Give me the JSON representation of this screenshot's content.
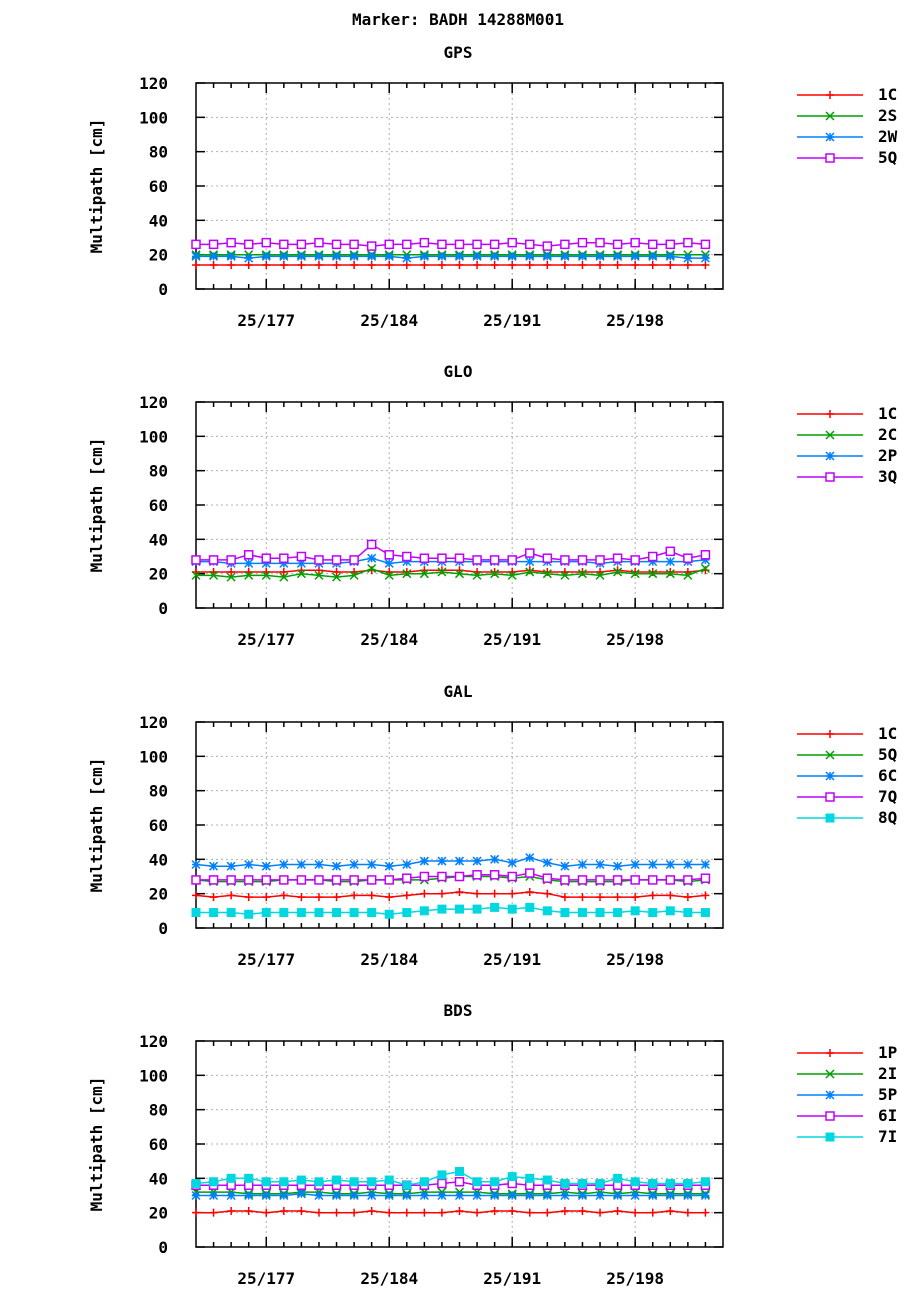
{
  "page": {
    "title": "Marker: BADH 14288M001"
  },
  "chart_data": [
    {
      "type": "line",
      "title": "GPS",
      "ylabel": "Multipath [cm]",
      "xlabel": "",
      "ylim": [
        0,
        120
      ],
      "yticks": [
        0,
        20,
        40,
        60,
        80,
        100,
        120
      ],
      "xlim": [
        173,
        203
      ],
      "xticks": [
        177,
        184,
        191,
        198
      ],
      "xtick_labels": [
        "25/177",
        "25/184",
        "25/191",
        "25/198"
      ],
      "grid": true,
      "legend": "right",
      "x": [
        173,
        174,
        175,
        176,
        177,
        178,
        179,
        180,
        181,
        182,
        183,
        184,
        185,
        186,
        187,
        188,
        189,
        190,
        191,
        192,
        193,
        194,
        195,
        196,
        197,
        198,
        199,
        200,
        201,
        202
      ],
      "series": [
        {
          "name": "1C",
          "color": "#ff0000",
          "marker": "plus",
          "values": [
            14,
            14,
            14,
            14,
            14,
            14,
            14,
            14,
            14,
            14,
            14,
            14,
            14,
            14,
            14,
            14,
            14,
            14,
            14,
            14,
            14,
            14,
            14,
            14,
            14,
            14,
            14,
            14,
            14,
            14
          ]
        },
        {
          "name": "2S",
          "color": "#00a000",
          "marker": "x",
          "values": [
            20,
            20,
            20,
            20,
            20,
            20,
            20,
            20,
            20,
            20,
            20,
            20,
            20,
            20,
            20,
            20,
            20,
            20,
            20,
            20,
            20,
            20,
            20,
            20,
            20,
            20,
            20,
            20,
            20,
            20
          ]
        },
        {
          "name": "2W",
          "color": "#0080ff",
          "marker": "star",
          "values": [
            19,
            19,
            19,
            18,
            19,
            19,
            19,
            19,
            19,
            19,
            19,
            19,
            18,
            19,
            19,
            19,
            19,
            19,
            19,
            19,
            19,
            19,
            19,
            19,
            19,
            19,
            19,
            19,
            18,
            18
          ]
        },
        {
          "name": "5Q",
          "color": "#c000ff",
          "marker": "square",
          "values": [
            26,
            26,
            27,
            26,
            27,
            26,
            26,
            27,
            26,
            26,
            25,
            26,
            26,
            27,
            26,
            26,
            26,
            26,
            27,
            26,
            25,
            26,
            27,
            27,
            26,
            27,
            26,
            26,
            27,
            26
          ]
        }
      ]
    },
    {
      "type": "line",
      "title": "GLO",
      "ylabel": "Multipath [cm]",
      "xlabel": "",
      "ylim": [
        0,
        120
      ],
      "yticks": [
        0,
        20,
        40,
        60,
        80,
        100,
        120
      ],
      "xlim": [
        173,
        203
      ],
      "xticks": [
        177,
        184,
        191,
        198
      ],
      "xtick_labels": [
        "25/177",
        "25/184",
        "25/191",
        "25/198"
      ],
      "grid": true,
      "legend": "right",
      "x": [
        173,
        174,
        175,
        176,
        177,
        178,
        179,
        180,
        181,
        182,
        183,
        184,
        185,
        186,
        187,
        188,
        189,
        190,
        191,
        192,
        193,
        194,
        195,
        196,
        197,
        198,
        199,
        200,
        201,
        202
      ],
      "series": [
        {
          "name": "1C",
          "color": "#ff0000",
          "marker": "plus",
          "values": [
            21,
            21,
            21,
            21,
            21,
            21,
            22,
            22,
            21,
            21,
            22,
            21,
            21,
            22,
            22,
            22,
            21,
            21,
            21,
            22,
            21,
            21,
            21,
            21,
            22,
            21,
            21,
            21,
            21,
            22
          ]
        },
        {
          "name": "2C",
          "color": "#00a000",
          "marker": "x",
          "values": [
            19,
            19,
            18,
            19,
            19,
            18,
            20,
            19,
            18,
            19,
            23,
            19,
            20,
            20,
            21,
            20,
            19,
            20,
            19,
            21,
            20,
            19,
            20,
            19,
            21,
            20,
            20,
            20,
            19,
            23
          ]
        },
        {
          "name": "2P",
          "color": "#0080ff",
          "marker": "star",
          "values": [
            27,
            27,
            26,
            26,
            26,
            26,
            26,
            26,
            26,
            27,
            29,
            26,
            27,
            27,
            27,
            27,
            27,
            27,
            27,
            27,
            27,
            27,
            27,
            26,
            27,
            27,
            27,
            27,
            27,
            28
          ]
        },
        {
          "name": "3Q",
          "color": "#c000ff",
          "marker": "square",
          "values": [
            28,
            28,
            28,
            31,
            29,
            29,
            30,
            28,
            28,
            28,
            37,
            31,
            30,
            29,
            29,
            29,
            28,
            28,
            28,
            32,
            29,
            28,
            28,
            28,
            29,
            28,
            30,
            33,
            29,
            31
          ]
        }
      ]
    },
    {
      "type": "line",
      "title": "GAL",
      "ylabel": "Multipath [cm]",
      "xlabel": "",
      "ylim": [
        0,
        120
      ],
      "yticks": [
        0,
        20,
        40,
        60,
        80,
        100,
        120
      ],
      "xlim": [
        173,
        203
      ],
      "xticks": [
        177,
        184,
        191,
        198
      ],
      "xtick_labels": [
        "25/177",
        "25/184",
        "25/191",
        "25/198"
      ],
      "grid": true,
      "legend": "right",
      "x": [
        173,
        174,
        175,
        176,
        177,
        178,
        179,
        180,
        181,
        182,
        183,
        184,
        185,
        186,
        187,
        188,
        189,
        190,
        191,
        192,
        193,
        194,
        195,
        196,
        197,
        198,
        199,
        200,
        201,
        202
      ],
      "series": [
        {
          "name": "1C",
          "color": "#ff0000",
          "marker": "plus",
          "values": [
            19,
            18,
            19,
            18,
            18,
            19,
            18,
            18,
            18,
            19,
            19,
            18,
            19,
            20,
            20,
            21,
            20,
            20,
            20,
            21,
            20,
            18,
            18,
            18,
            18,
            18,
            19,
            19,
            18,
            19
          ]
        },
        {
          "name": "5Q",
          "color": "#00a000",
          "marker": "x",
          "values": [
            28,
            27,
            27,
            27,
            27,
            28,
            28,
            28,
            27,
            27,
            28,
            28,
            28,
            28,
            29,
            30,
            30,
            30,
            29,
            30,
            28,
            27,
            27,
            27,
            27,
            28,
            28,
            28,
            27,
            28
          ]
        },
        {
          "name": "6C",
          "color": "#0080ff",
          "marker": "star",
          "values": [
            37,
            36,
            36,
            37,
            36,
            37,
            37,
            37,
            36,
            37,
            37,
            36,
            37,
            39,
            39,
            39,
            39,
            40,
            38,
            41,
            38,
            36,
            37,
            37,
            36,
            37,
            37,
            37,
            37,
            37
          ]
        },
        {
          "name": "7Q",
          "color": "#c000ff",
          "marker": "square",
          "values": [
            28,
            28,
            28,
            28,
            28,
            28,
            28,
            28,
            28,
            28,
            28,
            28,
            29,
            30,
            30,
            30,
            31,
            31,
            30,
            32,
            29,
            28,
            28,
            28,
            28,
            28,
            28,
            28,
            28,
            29
          ]
        },
        {
          "name": "8Q",
          "color": "#00d8e0",
          "marker": "filled-square",
          "values": [
            9,
            9,
            9,
            8,
            9,
            9,
            9,
            9,
            9,
            9,
            9,
            8,
            9,
            10,
            11,
            11,
            11,
            12,
            11,
            12,
            10,
            9,
            9,
            9,
            9,
            10,
            9,
            10,
            9,
            9
          ]
        }
      ]
    },
    {
      "type": "line",
      "title": "BDS",
      "ylabel": "Multipath [cm]",
      "xlabel": "",
      "ylim": [
        0,
        120
      ],
      "yticks": [
        0,
        20,
        40,
        60,
        80,
        100,
        120
      ],
      "xlim": [
        173,
        203
      ],
      "xticks": [
        177,
        184,
        191,
        198
      ],
      "xtick_labels": [
        "25/177",
        "25/184",
        "25/191",
        "25/198"
      ],
      "grid": true,
      "legend": "right",
      "x": [
        173,
        174,
        175,
        176,
        177,
        178,
        179,
        180,
        181,
        182,
        183,
        184,
        185,
        186,
        187,
        188,
        189,
        190,
        191,
        192,
        193,
        194,
        195,
        196,
        197,
        198,
        199,
        200,
        201,
        202
      ],
      "series": [
        {
          "name": "1P",
          "color": "#ff0000",
          "marker": "plus",
          "values": [
            20,
            20,
            21,
            21,
            20,
            21,
            21,
            20,
            20,
            20,
            21,
            20,
            20,
            20,
            20,
            21,
            20,
            21,
            21,
            20,
            20,
            21,
            21,
            20,
            21,
            20,
            20,
            21,
            20,
            20
          ]
        },
        {
          "name": "2I",
          "color": "#00a000",
          "marker": "x",
          "values": [
            32,
            32,
            32,
            31,
            31,
            31,
            32,
            32,
            31,
            31,
            32,
            31,
            31,
            32,
            32,
            32,
            32,
            31,
            31,
            31,
            31,
            32,
            31,
            32,
            31,
            32,
            31,
            31,
            31,
            31
          ]
        },
        {
          "name": "5P",
          "color": "#0080ff",
          "marker": "star",
          "values": [
            30,
            30,
            30,
            30,
            30,
            30,
            31,
            30,
            30,
            30,
            30,
            30,
            30,
            30,
            30,
            30,
            30,
            30,
            30,
            30,
            30,
            30,
            30,
            30,
            30,
            30,
            30,
            30,
            30,
            30
          ]
        },
        {
          "name": "6I",
          "color": "#c000ff",
          "marker": "square",
          "values": [
            36,
            36,
            36,
            36,
            36,
            36,
            36,
            36,
            36,
            36,
            36,
            36,
            36,
            36,
            37,
            38,
            36,
            36,
            37,
            36,
            36,
            36,
            36,
            36,
            36,
            36,
            36,
            36,
            36,
            36
          ]
        },
        {
          "name": "7I",
          "color": "#00d8e0",
          "marker": "filled-square",
          "values": [
            37,
            38,
            40,
            40,
            38,
            38,
            39,
            38,
            39,
            38,
            38,
            39,
            36,
            38,
            42,
            44,
            38,
            38,
            41,
            40,
            39,
            37,
            37,
            37,
            40,
            38,
            37,
            37,
            37,
            38
          ]
        }
      ]
    }
  ]
}
